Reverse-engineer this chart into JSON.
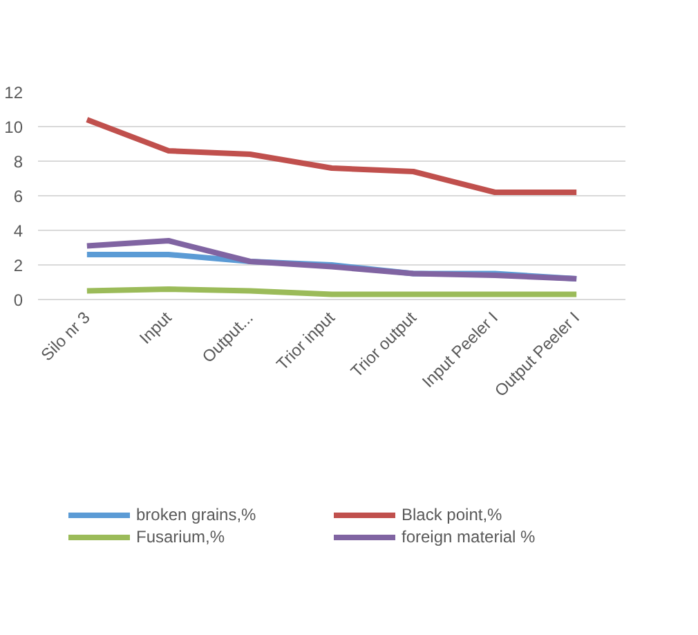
{
  "chart_data": {
    "type": "line",
    "categories": [
      "Silo nr 3",
      "Input",
      "Output...",
      "Trior input",
      "Trior output",
      "Input Peeler I",
      "Output Peeler I"
    ],
    "series": [
      {
        "name": "broken grains,%",
        "color": "#5b9bd5",
        "values": [
          2.6,
          2.6,
          2.2,
          2.0,
          1.5,
          1.5,
          1.2
        ]
      },
      {
        "name": "Black point,%",
        "color": "#c0504d",
        "values": [
          10.4,
          8.6,
          8.4,
          7.6,
          7.4,
          6.2,
          6.2
        ]
      },
      {
        "name": "Fusarium,%",
        "color": "#9bbb59",
        "values": [
          0.5,
          0.6,
          0.5,
          0.3,
          0.3,
          0.3,
          0.3
        ]
      },
      {
        "name": "foreign material %",
        "color": "#8064a2",
        "values": [
          3.1,
          3.4,
          2.2,
          1.9,
          1.5,
          1.4,
          1.2
        ]
      }
    ],
    "ylim": [
      0,
      12
    ],
    "yticks": [
      0,
      2,
      4,
      6,
      8,
      10,
      12
    ],
    "grid": "y",
    "legend": "bottom",
    "marker": "none",
    "line_style": "solid"
  }
}
